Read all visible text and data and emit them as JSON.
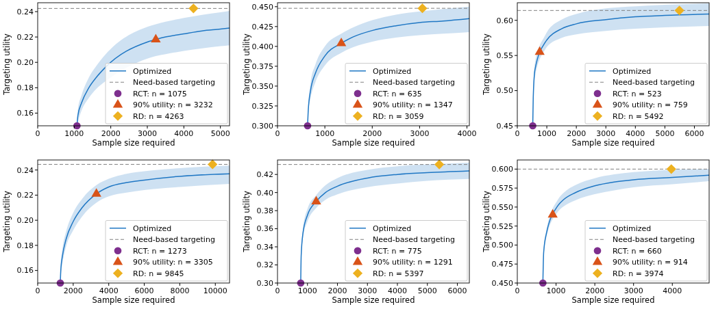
{
  "chart_data": [
    {
      "type": "line",
      "xlabel": "Sample size required",
      "ylabel": "Targeting utility",
      "xlim": [
        0,
        5250
      ],
      "ylim": [
        0.15,
        0.247
      ],
      "xticks": [
        0,
        1000,
        2000,
        3000,
        4000,
        5000
      ],
      "yticks": [
        0.16,
        0.18,
        {
          "value": 0.2,
          "label": "0.20"
        },
        0.22,
        0.24
      ],
      "legend": "bottom right",
      "series": [
        {
          "name": "Optimized",
          "type": "line",
          "color": "#1f77c4",
          "x": [
            1075,
            1100,
            1200,
            1400,
            1600,
            1850,
            3000,
            3232,
            3500,
            4000,
            4500,
            5000,
            5250
          ],
          "values": [
            0.15,
            0.158,
            0.168,
            0.18,
            0.188,
            0.196,
            0.216,
            0.218,
            0.22,
            0.2225,
            0.2248,
            0.2262,
            0.227
          ],
          "lower": [
            0.15,
            0.153,
            0.162,
            0.172,
            0.179,
            0.185,
            0.203,
            0.205,
            0.2065,
            0.209,
            0.211,
            0.2128,
            0.2135
          ],
          "upper": [
            0.15,
            0.163,
            0.174,
            0.188,
            0.197,
            0.206,
            0.228,
            0.23,
            0.232,
            0.235,
            0.2375,
            0.2395,
            0.2405
          ]
        },
        {
          "name": "RCT: n = 1075",
          "type": "scatter",
          "marker": "circle",
          "color": "#7e2f8e",
          "x": [
            1075
          ],
          "values": [
            0.15
          ]
        },
        {
          "name": "90% utility: n = 3232",
          "type": "scatter",
          "marker": "triangle",
          "color": "#d95319",
          "x": [
            3232
          ],
          "values": [
            0.218
          ]
        },
        {
          "name": "RD: n = 4263",
          "type": "scatter",
          "marker": "diamond",
          "color": "#edb120",
          "x": [
            4263
          ],
          "values": [
            0.2425
          ]
        }
      ],
      "ref_lines": [
        {
          "axis": "y",
          "value": 0.2425,
          "label": "Need-based targeting",
          "color": "#808080",
          "line_style": "dashed"
        }
      ]
    },
    {
      "type": "line",
      "xlabel": "Sample size required",
      "ylabel": "Targeting utility",
      "xlim": [
        0,
        4050
      ],
      "ylim": [
        0.3,
        0.455
      ],
      "xticks": [
        0,
        1000,
        2000,
        3000,
        4000
      ],
      "yticks": [
        {
          "value": 0.3,
          "label": "0.300"
        },
        0.325,
        {
          "value": 0.35,
          "label": "0.350"
        },
        0.375,
        {
          "value": 0.4,
          "label": "0.400"
        },
        0.425,
        {
          "value": 0.45,
          "label": "0.450"
        }
      ],
      "legend": "bottom right",
      "series": [
        {
          "name": "Optimized",
          "type": "line",
          "color": "#1f77c4",
          "x": [
            635,
            650,
            700,
            800,
            1000,
            1347,
            1600,
            2000,
            2500,
            3000,
            3500,
            4050
          ],
          "values": [
            0.3,
            0.32,
            0.345,
            0.366,
            0.388,
            0.404,
            0.412,
            0.42,
            0.426,
            0.43,
            0.432,
            0.435
          ],
          "lower": [
            0.3,
            0.315,
            0.335,
            0.355,
            0.376,
            0.392,
            0.399,
            0.406,
            0.411,
            0.414,
            0.416,
            0.418
          ],
          "upper": [
            0.3,
            0.325,
            0.355,
            0.377,
            0.4,
            0.416,
            0.424,
            0.433,
            0.44,
            0.444,
            0.447,
            0.45
          ]
        },
        {
          "name": "RCT: n = 635",
          "type": "scatter",
          "marker": "circle",
          "color": "#7e2f8e",
          "x": [
            635
          ],
          "values": [
            0.3
          ]
        },
        {
          "name": "90% utility: n = 1347",
          "type": "scatter",
          "marker": "triangle",
          "color": "#d95319",
          "x": [
            1347
          ],
          "values": [
            0.404
          ]
        },
        {
          "name": "RD: n = 3059",
          "type": "scatter",
          "marker": "diamond",
          "color": "#edb120",
          "x": [
            3059
          ],
          "values": [
            0.448
          ]
        }
      ],
      "ref_lines": [
        {
          "axis": "y",
          "value": 0.448,
          "label": "Need-based targeting",
          "color": "#808080",
          "line_style": "dashed"
        }
      ]
    },
    {
      "type": "line",
      "xlabel": "Sample size required",
      "ylabel": "Targeting utility",
      "xlim": [
        0,
        6500
      ],
      "ylim": [
        0.45,
        0.625
      ],
      "xticks": [
        0,
        1000,
        2000,
        3000,
        4000,
        5000,
        6000
      ],
      "yticks": [
        0.45,
        {
          "value": 0.5,
          "label": "0.50"
        },
        0.55,
        {
          "value": 0.6,
          "label": "0.60"
        }
      ],
      "legend": "bottom right",
      "series": [
        {
          "name": "Optimized",
          "type": "line",
          "color": "#1f77c4",
          "x": [
            523,
            540,
            600,
            950,
            1000,
            1500,
            2000,
            3000,
            4000,
            5000,
            6500
          ],
          "values": [
            0.45,
            0.49,
            0.53,
            0.569,
            0.572,
            0.588,
            0.595,
            0.601,
            0.605,
            0.607,
            0.609
          ],
          "lower": [
            0.45,
            0.48,
            0.52,
            0.559,
            0.562,
            0.575,
            0.58,
            0.585,
            0.588,
            0.59,
            0.592
          ],
          "upper": [
            0.45,
            0.5,
            0.54,
            0.579,
            0.583,
            0.601,
            0.609,
            0.617,
            0.62,
            0.622,
            0.624
          ]
        },
        {
          "name": "RCT: n = 523",
          "type": "scatter",
          "marker": "circle",
          "color": "#7e2f8e",
          "x": [
            523
          ],
          "values": [
            0.45
          ]
        },
        {
          "name": "90% utility: n = 759",
          "type": "scatter",
          "marker": "triangle",
          "color": "#d95319",
          "x": [
            759
          ],
          "values": [
            0.555
          ]
        },
        {
          "name": "RD: n = 5492",
          "type": "scatter",
          "marker": "diamond",
          "color": "#edb120",
          "x": [
            5492
          ],
          "values": [
            0.614
          ]
        }
      ],
      "ref_lines": [
        {
          "axis": "y",
          "value": 0.614,
          "label": "Need-based targeting",
          "color": "#808080",
          "line_style": "dashed"
        }
      ]
    },
    {
      "type": "line",
      "xlabel": "Sample size required",
      "ylabel": "Targeting utility",
      "xlim": [
        0,
        10800
      ],
      "ylim": [
        0.15,
        0.248
      ],
      "xticks": [
        0,
        2000,
        4000,
        6000,
        8000,
        10000
      ],
      "yticks": [
        0.16,
        0.18,
        {
          "value": 0.2,
          "label": "0.20"
        },
        0.22,
        0.24
      ],
      "legend": "bottom right",
      "series": [
        {
          "name": "Optimized",
          "type": "line",
          "color": "#1f77c4",
          "x": [
            1273,
            1300,
            1400,
            1600,
            2000,
            2500,
            3305,
            4000,
            5000,
            6000,
            8000,
            10800
          ],
          "values": [
            0.15,
            0.16,
            0.172,
            0.185,
            0.199,
            0.21,
            0.221,
            0.2265,
            0.23,
            0.232,
            0.235,
            0.237
          ],
          "lower": [
            0.15,
            0.155,
            0.166,
            0.179,
            0.192,
            0.203,
            0.214,
            0.219,
            0.222,
            0.224,
            0.2265,
            0.229
          ],
          "upper": [
            0.15,
            0.165,
            0.178,
            0.191,
            0.206,
            0.217,
            0.228,
            0.233,
            0.237,
            0.239,
            0.2415,
            0.2435
          ]
        },
        {
          "name": "RCT: n = 1273",
          "type": "scatter",
          "marker": "circle",
          "color": "#7e2f8e",
          "x": [
            1273
          ],
          "values": [
            0.15
          ]
        },
        {
          "name": "90% utility: n = 3305",
          "type": "scatter",
          "marker": "triangle",
          "color": "#d95319",
          "x": [
            3305
          ],
          "values": [
            0.221
          ]
        },
        {
          "name": "RD: n = 9845",
          "type": "scatter",
          "marker": "diamond",
          "color": "#edb120",
          "x": [
            9845
          ],
          "values": [
            0.2445
          ]
        }
      ],
      "ref_lines": [
        {
          "axis": "y",
          "value": 0.2445,
          "label": "Need-based targeting",
          "color": "#808080",
          "line_style": "dashed"
        }
      ]
    },
    {
      "type": "line",
      "xlabel": "Sample size required",
      "ylabel": "Targeting utility",
      "xlim": [
        0,
        6400
      ],
      "ylim": [
        0.3,
        0.436
      ],
      "xticks": [
        0,
        1000,
        2000,
        3000,
        4000,
        5000,
        6000
      ],
      "yticks": [
        {
          "value": 0.3,
          "label": "0.30"
        },
        0.32,
        0.34,
        0.36,
        0.38,
        {
          "value": 0.4,
          "label": "0.40"
        },
        0.42
      ],
      "legend": "bottom right",
      "series": [
        {
          "name": "Optimized",
          "type": "line",
          "color": "#1f77c4",
          "x": [
            775,
            790,
            850,
            1000,
            1291,
            1600,
            2000,
            3000,
            4000,
            5000,
            6400
          ],
          "values": [
            0.3,
            0.33,
            0.355,
            0.375,
            0.39,
            0.4,
            0.407,
            0.416,
            0.42,
            0.422,
            0.424
          ],
          "lower": [
            0.3,
            0.325,
            0.35,
            0.368,
            0.383,
            0.392,
            0.398,
            0.406,
            0.41,
            0.413,
            0.415
          ],
          "upper": [
            0.3,
            0.335,
            0.36,
            0.382,
            0.397,
            0.408,
            0.416,
            0.425,
            0.429,
            0.431,
            0.433
          ]
        },
        {
          "name": "RCT: n = 775",
          "type": "scatter",
          "marker": "circle",
          "color": "#7e2f8e",
          "x": [
            775
          ],
          "values": [
            0.3
          ]
        },
        {
          "name": "90% utility: n = 1291",
          "type": "scatter",
          "marker": "triangle",
          "color": "#d95319",
          "x": [
            1291
          ],
          "values": [
            0.39
          ]
        },
        {
          "name": "RD: n = 5397",
          "type": "scatter",
          "marker": "diamond",
          "color": "#edb120",
          "x": [
            5397
          ],
          "values": [
            0.431
          ]
        }
      ],
      "ref_lines": [
        {
          "axis": "y",
          "value": 0.431,
          "label": "Need-based targeting",
          "color": "#808080",
          "line_style": "dashed"
        }
      ]
    },
    {
      "type": "line",
      "xlabel": "Sample size required",
      "ylabel": "Targeting utility",
      "xlim": [
        0,
        4950
      ],
      "ylim": [
        0.45,
        0.612
      ],
      "xticks": [
        0,
        1000,
        2000,
        3000,
        4000
      ],
      "yticks": [
        {
          "value": 0.45,
          "label": "0.450"
        },
        0.475,
        {
          "value": 0.5,
          "label": "0.500"
        },
        0.525,
        {
          "value": 0.55,
          "label": "0.550"
        },
        0.575,
        {
          "value": 0.6,
          "label": "0.600"
        }
      ],
      "legend": "bottom right",
      "series": [
        {
          "name": "Optimized",
          "type": "line",
          "color": "#1f77c4",
          "x": [
            660,
            680,
            750,
            1050,
            1200,
            1500,
            2000,
            2500,
            3000,
            4000,
            4950
          ],
          "values": [
            0.45,
            0.49,
            0.515,
            0.552,
            0.56,
            0.569,
            0.578,
            0.583,
            0.586,
            0.589,
            0.592
          ],
          "lower": [
            0.45,
            0.485,
            0.51,
            0.544,
            0.551,
            0.559,
            0.567,
            0.572,
            0.576,
            0.58,
            0.584
          ],
          "upper": [
            0.45,
            0.495,
            0.52,
            0.56,
            0.569,
            0.579,
            0.588,
            0.593,
            0.596,
            0.599,
            0.6
          ]
        },
        {
          "name": "RCT: n = 660",
          "type": "scatter",
          "marker": "circle",
          "color": "#7e2f8e",
          "x": [
            660
          ],
          "values": [
            0.45
          ]
        },
        {
          "name": "90% utility: n = 914",
          "type": "scatter",
          "marker": "triangle",
          "color": "#d95319",
          "x": [
            914
          ],
          "values": [
            0.54
          ]
        },
        {
          "name": "RD: n = 3974",
          "type": "scatter",
          "marker": "diamond",
          "color": "#edb120",
          "x": [
            3974
          ],
          "values": [
            0.6
          ]
        }
      ],
      "ref_lines": [
        {
          "axis": "y",
          "value": 0.6,
          "label": "Need-based targeting",
          "color": "#808080",
          "line_style": "dashed"
        }
      ]
    }
  ]
}
